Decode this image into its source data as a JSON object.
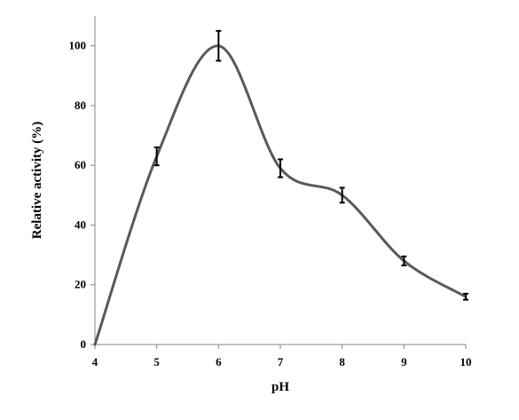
{
  "chart_data": {
    "type": "line",
    "title": "",
    "xlabel": "pH",
    "ylabel": "Relative activity (%)",
    "xlim": [
      4,
      10
    ],
    "ylim": [
      0,
      110
    ],
    "x_ticks": [
      4,
      5,
      6,
      7,
      8,
      9,
      10
    ],
    "y_ticks": [
      0,
      20,
      40,
      60,
      80,
      100
    ],
    "grid": false,
    "smooth": true,
    "series": [
      {
        "x": [
          4,
          5,
          6,
          7,
          8,
          9,
          10
        ],
        "y": [
          0,
          63,
          100,
          59,
          50,
          28,
          16
        ],
        "error": [
          0,
          3,
          5,
          3,
          2.5,
          1.5,
          1
        ],
        "color": "#595959"
      }
    ]
  }
}
